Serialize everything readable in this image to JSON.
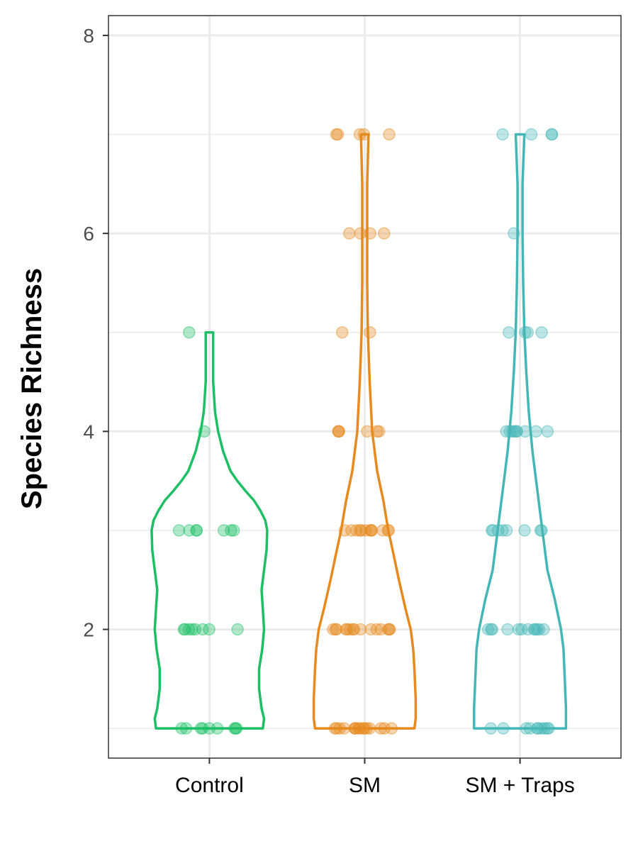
{
  "chart_data": {
    "type": "violin",
    "title": "",
    "xlabel": "",
    "ylabel": "Species Richness",
    "ylim": [
      0.7,
      8.2
    ],
    "yticks": [
      2,
      4,
      6,
      8
    ],
    "grid": true,
    "legend": "none",
    "categories": [
      "Control",
      "SM",
      "SM + Traps"
    ],
    "series": [
      {
        "category": "Control",
        "color": "#1dbf65",
        "range": [
          1,
          5
        ],
        "violin_profile": [
          [
            1.0,
            0.86
          ],
          [
            1.1,
            0.88
          ],
          [
            1.2,
            0.84
          ],
          [
            1.4,
            0.8
          ],
          [
            1.6,
            0.8
          ],
          [
            1.8,
            0.85
          ],
          [
            2.0,
            0.88
          ],
          [
            2.2,
            0.86
          ],
          [
            2.4,
            0.84
          ],
          [
            2.6,
            0.88
          ],
          [
            2.8,
            0.92
          ],
          [
            3.0,
            0.93
          ],
          [
            3.1,
            0.9
          ],
          [
            3.2,
            0.82
          ],
          [
            3.3,
            0.72
          ],
          [
            3.4,
            0.58
          ],
          [
            3.5,
            0.45
          ],
          [
            3.6,
            0.34
          ],
          [
            3.8,
            0.22
          ],
          [
            4.0,
            0.14
          ],
          [
            4.2,
            0.09
          ],
          [
            4.5,
            0.06
          ],
          [
            5.0,
            0.06
          ]
        ],
        "points": [
          {
            "y": 1,
            "n": 9
          },
          {
            "y": 2,
            "n": 8
          },
          {
            "y": 3,
            "n": 7
          },
          {
            "y": 4,
            "n": 1
          },
          {
            "y": 5,
            "n": 1
          }
        ]
      },
      {
        "category": "SM",
        "color": "#e6891e",
        "range": [
          1,
          7
        ],
        "violin_profile": [
          [
            1.0,
            0.8
          ],
          [
            1.1,
            0.82
          ],
          [
            1.3,
            0.82
          ],
          [
            1.6,
            0.8
          ],
          [
            1.8,
            0.78
          ],
          [
            2.0,
            0.74
          ],
          [
            2.2,
            0.66
          ],
          [
            2.5,
            0.55
          ],
          [
            2.8,
            0.45
          ],
          [
            3.0,
            0.38
          ],
          [
            3.3,
            0.3
          ],
          [
            3.6,
            0.2
          ],
          [
            4.0,
            0.12
          ],
          [
            4.5,
            0.08
          ],
          [
            5.0,
            0.05
          ],
          [
            5.5,
            0.04
          ],
          [
            6.0,
            0.04
          ],
          [
            6.5,
            0.04
          ],
          [
            7.0,
            0.06
          ]
        ],
        "points": [
          {
            "y": 1,
            "n": 16
          },
          {
            "y": 2,
            "n": 15
          },
          {
            "y": 3,
            "n": 12
          },
          {
            "y": 4,
            "n": 6
          },
          {
            "y": 5,
            "n": 2
          },
          {
            "y": 6,
            "n": 4
          },
          {
            "y": 7,
            "n": 5
          }
        ]
      },
      {
        "category": "SM + Traps",
        "color": "#45b6b6",
        "range": [
          1,
          7
        ],
        "violin_profile": [
          [
            1.0,
            0.74
          ],
          [
            1.2,
            0.74
          ],
          [
            1.5,
            0.72
          ],
          [
            1.8,
            0.7
          ],
          [
            2.0,
            0.66
          ],
          [
            2.3,
            0.56
          ],
          [
            2.6,
            0.44
          ],
          [
            3.0,
            0.36
          ],
          [
            3.4,
            0.28
          ],
          [
            3.8,
            0.2
          ],
          [
            4.2,
            0.14
          ],
          [
            4.6,
            0.1
          ],
          [
            5.0,
            0.07
          ],
          [
            5.5,
            0.05
          ],
          [
            6.0,
            0.04
          ],
          [
            6.5,
            0.04
          ],
          [
            7.0,
            0.07
          ]
        ],
        "points": [
          {
            "y": 1,
            "n": 10
          },
          {
            "y": 2,
            "n": 12
          },
          {
            "y": 3,
            "n": 8
          },
          {
            "y": 4,
            "n": 9
          },
          {
            "y": 5,
            "n": 4
          },
          {
            "y": 6,
            "n": 1
          },
          {
            "y": 7,
            "n": 4
          }
        ]
      }
    ]
  }
}
